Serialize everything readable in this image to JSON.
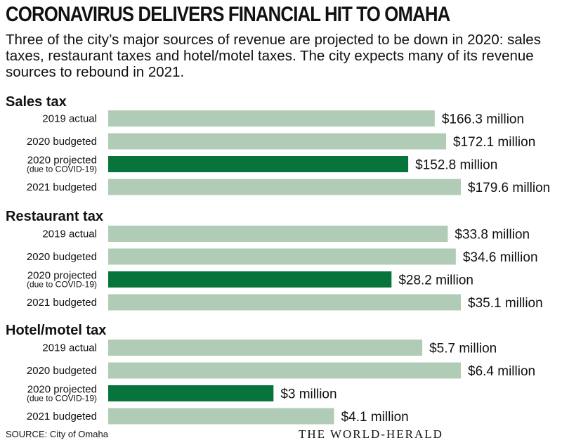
{
  "header": {
    "title": "CORONAVIRUS DELIVERS FINANCIAL HIT TO OMAHA",
    "subtitle": "Three of the city’s major sources of revenue are projected to be down in 2020: sales taxes, restaurant taxes and hotel/motel taxes. The city expects many of its revenue sources to rebound in 2021."
  },
  "footer": {
    "source": "SOURCE: City of Omaha",
    "brand": "THE WORLD-HERALD"
  },
  "colors": {
    "normal_bar": "#b1ccb6",
    "highlight_bar": "#06743b"
  },
  "chart_data": [
    {
      "type": "bar",
      "title": "Sales tax",
      "unit": "million",
      "categories": [
        "2019 actual",
        "2020 budgeted",
        "2020 projected",
        "2021 budgeted"
      ],
      "category_notes": [
        "",
        "",
        "(due to COVID-19)",
        ""
      ],
      "values": [
        166.3,
        172.1,
        152.8,
        179.6
      ],
      "labels": [
        "$166.3 million",
        "$172.1 million",
        "$152.8 million",
        "$179.6 million"
      ],
      "highlight_index": 2
    },
    {
      "type": "bar",
      "title": "Restaurant tax",
      "unit": "million",
      "categories": [
        "2019 actual",
        "2020 budgeted",
        "2020 projected",
        "2021 budgeted"
      ],
      "category_notes": [
        "",
        "",
        "(due to COVID-19)",
        ""
      ],
      "values": [
        33.8,
        34.6,
        28.2,
        35.1
      ],
      "labels": [
        "$33.8 million",
        "$34.6 million",
        "$28.2 million",
        "$35.1 million"
      ],
      "highlight_index": 2
    },
    {
      "type": "bar",
      "title": "Hotel/motel tax",
      "unit": "million",
      "categories": [
        "2019 actual",
        "2020 budgeted",
        "2020 projected",
        "2021 budgeted"
      ],
      "category_notes": [
        "",
        "",
        "(due to COVID-19)",
        ""
      ],
      "values": [
        5.7,
        6.4,
        3,
        4.1
      ],
      "labels": [
        "$5.7 million",
        "$6.4 million",
        "$3 million",
        "$4.1 million"
      ],
      "highlight_index": 2
    }
  ]
}
